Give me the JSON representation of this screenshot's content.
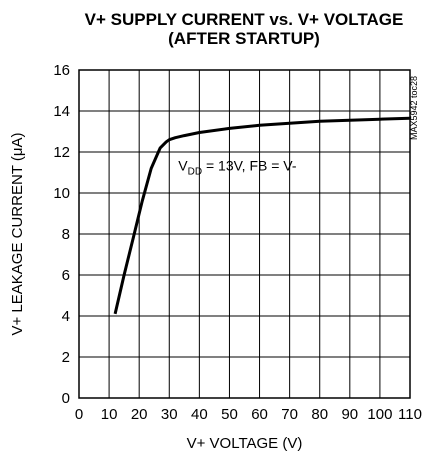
{
  "chart_data": {
    "type": "line",
    "title_line1": "V+ SUPPLY CURRENT vs. V+ VOLTAGE",
    "title_line2": "(AFTER STARTUP)",
    "xlabel": "V+ VOLTAGE (V)",
    "ylabel": "V+ LEAKAGE CURRENT (μA)",
    "xlim": [
      0,
      110
    ],
    "ylim": [
      0,
      16
    ],
    "xticks": [
      0,
      10,
      20,
      30,
      40,
      50,
      60,
      70,
      80,
      90,
      100,
      110
    ],
    "yticks": [
      0,
      2,
      4,
      6,
      8,
      10,
      12,
      14,
      16
    ],
    "grid": true,
    "annotation": {
      "main": "V",
      "sub": "DD",
      "rest": " = 13V, FB = V-"
    },
    "side_label": "MAX5942 toc28",
    "series": [
      {
        "x": [
          12,
          15,
          18,
          21,
          24,
          27,
          29,
          30,
          32,
          35,
          40,
          50,
          60,
          70,
          80,
          90,
          100,
          110
        ],
        "y": [
          4.1,
          6.0,
          7.8,
          9.6,
          11.2,
          12.2,
          12.5,
          12.6,
          12.7,
          12.8,
          12.95,
          13.15,
          13.3,
          13.4,
          13.5,
          13.55,
          13.6,
          13.65
        ]
      }
    ]
  }
}
